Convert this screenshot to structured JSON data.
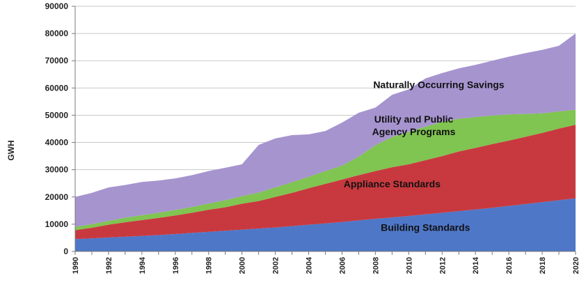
{
  "chart_data": {
    "type": "area",
    "stacked": true,
    "title": "",
    "xlabel": "",
    "ylabel": "GWH",
    "ylim": [
      0,
      90000
    ],
    "yticks": [
      0,
      10000,
      20000,
      30000,
      40000,
      50000,
      60000,
      70000,
      80000,
      90000
    ],
    "ytick_labels": [
      "0",
      "10000",
      "20000",
      "30000",
      "40000",
      "50000",
      "60000",
      "70000",
      "80000",
      "90000"
    ],
    "xlim": [
      1990,
      2020
    ],
    "xticks": [
      "1990",
      "1992",
      "1994",
      "1996",
      "1998",
      "2000",
      "2002",
      "2004",
      "2006",
      "2008",
      "2010",
      "2012",
      "2014",
      "2016",
      "2018",
      "2020"
    ],
    "grid": true,
    "x": [
      1990,
      1991,
      1992,
      1993,
      1994,
      1995,
      1996,
      1997,
      1998,
      1999,
      2000,
      2001,
      2002,
      2003,
      2004,
      2005,
      2006,
      2007,
      2008,
      2009,
      2010,
      2011,
      2012,
      2013,
      2014,
      2015,
      2016,
      2017,
      2018,
      2019,
      2020
    ],
    "series": [
      {
        "name": "Building Standards",
        "label": "Building Standards",
        "color": "#4f77c8",
        "values": [
          4500,
          4800,
          5100,
          5400,
          5700,
          6000,
          6400,
          6800,
          7200,
          7600,
          8000,
          8400,
          8800,
          9300,
          9800,
          10300,
          10800,
          11400,
          12000,
          12500,
          13000,
          13600,
          14200,
          14800,
          15400,
          16000,
          16700,
          17400,
          18100,
          18800,
          19500
        ]
      },
      {
        "name": "Appliance Standards",
        "label": "Appliance Standards",
        "color": "#c8393f",
        "values": [
          3300,
          3900,
          4700,
          5300,
          5800,
          6300,
          6800,
          7400,
          8100,
          8600,
          9500,
          10100,
          11200,
          12200,
          13400,
          14500,
          15600,
          16600,
          17500,
          18400,
          19000,
          19900,
          20800,
          21900,
          22600,
          23400,
          24000,
          24700,
          25400,
          26300,
          27000
        ]
      },
      {
        "name": "Utility and Public Agency Programs",
        "label_lines": [
          "Utility and Public",
          "Agency Programs"
        ],
        "color": "#80c451",
        "values": [
          1200,
          1300,
          1400,
          1700,
          1800,
          1900,
          2000,
          2100,
          2300,
          2600,
          2800,
          3100,
          3500,
          3900,
          4200,
          4700,
          5100,
          6800,
          9500,
          11100,
          11900,
          12300,
          12600,
          12000,
          11300,
          10500,
          9600,
          8400,
          7200,
          6300,
          5500
        ]
      },
      {
        "name": "Naturally Occurring Savings",
        "label": "Naturally Occurring Savings",
        "color": "#a694cf",
        "values": [
          11000,
          11500,
          12300,
          12000,
          12200,
          11800,
          11600,
          11700,
          11900,
          11900,
          11700,
          17500,
          18000,
          17300,
          15600,
          14700,
          15800,
          16100,
          13800,
          15500,
          15600,
          17700,
          17900,
          18500,
          19200,
          20100,
          21200,
          22300,
          23300,
          24100,
          28000
        ]
      }
    ],
    "annotations": [
      {
        "series": "Building Standards",
        "x": 2011,
        "y": 7500
      },
      {
        "series": "Appliance Standards",
        "x": 2009,
        "y": 23500
      },
      {
        "series": "Utility and Public Agency Programs",
        "x": 2010.3,
        "y": 45000
      },
      {
        "series": "Naturally Occurring Savings",
        "x": 2011.8,
        "y": 60000
      }
    ]
  }
}
